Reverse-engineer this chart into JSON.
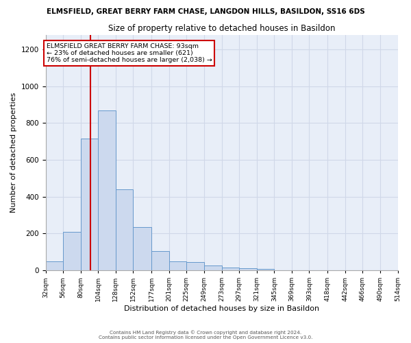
{
  "title": "ELMSFIELD, GREAT BERRY FARM CHASE, LANGDON HILLS, BASILDON, SS16 6DS",
  "subtitle": "Size of property relative to detached houses in Basildon",
  "xlabel": "Distribution of detached houses by size in Basildon",
  "ylabel": "Number of detached properties",
  "bar_color": "#ccd9ee",
  "bar_edge_color": "#6699cc",
  "grid_color": "#d0d8e8",
  "background_color": "#e8eef8",
  "property_line_x": 93,
  "annotation_title": "ELMSFIELD GREAT BERRY FARM CHASE: 93sqm",
  "annotation_line1": "← 23% of detached houses are smaller (621)",
  "annotation_line2": "76% of semi-detached houses are larger (2,038) →",
  "annotation_box_color": "#ffffff",
  "annotation_box_edge": "#cc0000",
  "annotation_text_color": "#000000",
  "property_line_color": "#cc0000",
  "footer1": "Contains HM Land Registry data © Crown copyright and database right 2024.",
  "footer2": "Contains public sector information licensed under the Open Government Licence v3.0.",
  "bin_edges": [
    32,
    56,
    80,
    104,
    128,
    152,
    177,
    201,
    225,
    249,
    273,
    297,
    321,
    345,
    369,
    393,
    418,
    442,
    466,
    490,
    514
  ],
  "bin_labels": [
    "32sqm",
    "56sqm",
    "80sqm",
    "104sqm",
    "128sqm",
    "152sqm",
    "177sqm",
    "201sqm",
    "225sqm",
    "249sqm",
    "273sqm",
    "297sqm",
    "321sqm",
    "345sqm",
    "369sqm",
    "393sqm",
    "418sqm",
    "442sqm",
    "466sqm",
    "490sqm",
    "514sqm"
  ],
  "counts": [
    50,
    210,
    715,
    870,
    440,
    235,
    105,
    50,
    45,
    25,
    15,
    12,
    8,
    0,
    0,
    0,
    0,
    0,
    0,
    0
  ],
  "ylim": [
    0,
    1280
  ],
  "yticks": [
    0,
    200,
    400,
    600,
    800,
    1000,
    1200
  ]
}
